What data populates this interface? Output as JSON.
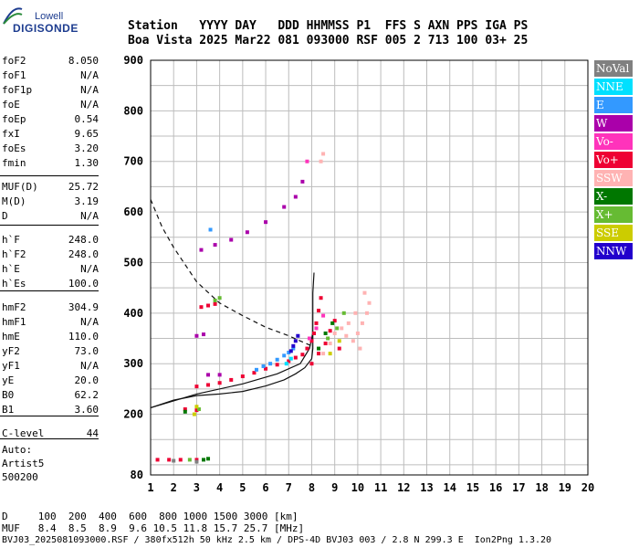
{
  "logo": {
    "top": "Lowell",
    "main": "DIGISONDE"
  },
  "header": {
    "line1": "Station   YYYY DAY   DDD HHMMSS P1  FFS S AXN PPS IGA PS",
    "line2": "Boa Vista 2025 Mar22 081 093000 RSF 005 2 713 100 03+ 25"
  },
  "params": [
    {
      "k": "foF2",
      "v": "8.050"
    },
    {
      "k": "foF1",
      "v": "N/A"
    },
    {
      "k": "foF1p",
      "v": "N/A"
    },
    {
      "k": "foE",
      "v": "N/A"
    },
    {
      "k": "foEp",
      "v": "0.54"
    },
    {
      "k": "fxI",
      "v": "9.65"
    },
    {
      "k": "foEs",
      "v": "3.20"
    },
    {
      "k": "fmin",
      "v": "1.30"
    },
    {
      "k": "MUF(D)",
      "v": "25.72"
    },
    {
      "k": "M(D)",
      "v": "3.19"
    },
    {
      "k": "D",
      "v": "N/A"
    },
    {
      "k": "h`F",
      "v": "248.0"
    },
    {
      "k": "h`F2",
      "v": "248.0"
    },
    {
      "k": "h`E",
      "v": "N/A"
    },
    {
      "k": "h`Es",
      "v": "100.0"
    },
    {
      "k": "hmF2",
      "v": "304.9"
    },
    {
      "k": "hmF1",
      "v": "N/A"
    },
    {
      "k": "hmE",
      "v": "110.0"
    },
    {
      "k": "yF2",
      "v": "73.0"
    },
    {
      "k": "yF1",
      "v": "N/A"
    },
    {
      "k": "yE",
      "v": "20.0"
    },
    {
      "k": "B0",
      "v": "62.2"
    },
    {
      "k": "B1",
      "v": "3.60"
    },
    {
      "k": "C-level",
      "v": "44"
    }
  ],
  "auto": {
    "line1": "Auto:",
    "line2": "Artist5",
    "line3": "500200"
  },
  "footer": {
    "d_row": "D     100  200  400  600  800 1000 1500 3000 [km]",
    "muf_row": "MUF   8.4  8.5  8.9  9.6 10.5 11.8 15.7 25.7 [MHz]",
    "file_row": "BVJ03_2025081093000.RSF / 380fx512h 50 kHz 2.5 km / DPS-4D BVJ03 003 / 2.8 N 299.3 E  Ion2Png 1.3.20"
  },
  "legend": [
    {
      "label": "NoVal",
      "color": "#808080"
    },
    {
      "label": "NNE",
      "color": "#00e0ff"
    },
    {
      "label": "E",
      "color": "#3399ff"
    },
    {
      "label": "W",
      "color": "#aa00aa"
    },
    {
      "label": "Vo-",
      "color": "#ff33bb"
    },
    {
      "label": "Vo+",
      "color": "#ee0033"
    },
    {
      "label": "SSW",
      "color": "#ffb3b3"
    },
    {
      "label": "X-",
      "color": "#007700"
    },
    {
      "label": "X+",
      "color": "#66bb33"
    },
    {
      "label": "SSE",
      "color": "#cccc00"
    },
    {
      "label": "NNW",
      "color": "#2200cc"
    }
  ],
  "chart_data": {
    "type": "scatter",
    "title": "",
    "xlabel": "",
    "ylabel": "",
    "xlim": [
      1,
      20
    ],
    "ylim": [
      80,
      900
    ],
    "x_ticks": [
      1,
      2,
      3,
      4,
      5,
      6,
      7,
      8,
      9,
      10,
      11,
      12,
      13,
      14,
      15,
      16,
      17,
      18,
      19,
      20
    ],
    "y_ticks": [
      80,
      200,
      300,
      400,
      500,
      600,
      700,
      800,
      900
    ],
    "grid": true,
    "series": [
      {
        "name": "Vo+",
        "color": "#ee0033",
        "points": [
          [
            3.0,
            255
          ],
          [
            3.5,
            258
          ],
          [
            4.0,
            262
          ],
          [
            4.5,
            268
          ],
          [
            5.0,
            275
          ],
          [
            5.5,
            282
          ],
          [
            6.0,
            290
          ],
          [
            6.5,
            298
          ],
          [
            7.0,
            305
          ],
          [
            7.3,
            312
          ],
          [
            7.6,
            318
          ],
          [
            7.8,
            330
          ],
          [
            8.0,
            345
          ],
          [
            8.1,
            360
          ],
          [
            8.2,
            380
          ],
          [
            8.3,
            405
          ],
          [
            8.4,
            430
          ],
          [
            8.0,
            300
          ],
          [
            8.3,
            320
          ],
          [
            8.6,
            340
          ],
          [
            8.8,
            365
          ],
          [
            9.0,
            385
          ],
          [
            9.2,
            330
          ],
          [
            3.2,
            412
          ],
          [
            3.5,
            415
          ],
          [
            3.8,
            418
          ],
          [
            1.3,
            110
          ],
          [
            1.8,
            110
          ],
          [
            2.3,
            110
          ],
          [
            3.0,
            110
          ],
          [
            2.5,
            210
          ],
          [
            3.0,
            208
          ]
        ]
      },
      {
        "name": "SSW",
        "color": "#ffb3b3",
        "points": [
          [
            8.5,
            320
          ],
          [
            8.8,
            340
          ],
          [
            9.0,
            360
          ],
          [
            9.3,
            370
          ],
          [
            9.5,
            355
          ],
          [
            9.8,
            345
          ],
          [
            10.0,
            360
          ],
          [
            10.2,
            380
          ],
          [
            10.4,
            400
          ],
          [
            10.5,
            420
          ],
          [
            10.3,
            440
          ],
          [
            9.6,
            380
          ],
          [
            9.9,
            400
          ],
          [
            10.1,
            330
          ],
          [
            8.5,
            715
          ],
          [
            8.4,
            700
          ]
        ]
      },
      {
        "name": "E",
        "color": "#3399ff",
        "points": [
          [
            5.6,
            288
          ],
          [
            5.9,
            295
          ],
          [
            6.2,
            300
          ],
          [
            6.5,
            308
          ],
          [
            6.8,
            316
          ],
          [
            7.0,
            322
          ],
          [
            7.2,
            330
          ],
          [
            3.6,
            565
          ]
        ]
      },
      {
        "name": "NNW",
        "color": "#2200cc",
        "points": [
          [
            7.2,
            335
          ],
          [
            7.3,
            345
          ],
          [
            7.4,
            355
          ],
          [
            7.1,
            325
          ]
        ]
      },
      {
        "name": "W",
        "color": "#aa00aa",
        "points": [
          [
            3.2,
            525
          ],
          [
            3.8,
            535
          ],
          [
            4.5,
            545
          ],
          [
            5.2,
            560
          ],
          [
            6.0,
            580
          ],
          [
            6.8,
            610
          ],
          [
            7.3,
            630
          ],
          [
            7.6,
            660
          ],
          [
            3.5,
            278
          ],
          [
            4.0,
            278
          ],
          [
            3.3,
            358
          ],
          [
            3.0,
            355
          ]
        ]
      },
      {
        "name": "Vo-",
        "color": "#ff33bb",
        "points": [
          [
            7.9,
            350
          ],
          [
            8.2,
            370
          ],
          [
            8.5,
            395
          ],
          [
            7.8,
            700
          ]
        ]
      },
      {
        "name": "X-",
        "color": "#007700",
        "points": [
          [
            8.3,
            330
          ],
          [
            8.6,
            360
          ],
          [
            8.9,
            380
          ],
          [
            2.5,
            205
          ],
          [
            3.3,
            110
          ],
          [
            3.5,
            112
          ]
        ]
      },
      {
        "name": "X+",
        "color": "#66bb33",
        "points": [
          [
            8.7,
            350
          ],
          [
            9.1,
            370
          ],
          [
            9.4,
            400
          ],
          [
            3.8,
            425
          ],
          [
            4.0,
            430
          ],
          [
            2.7,
            110
          ],
          [
            3.1,
            210
          ]
        ]
      },
      {
        "name": "SSE",
        "color": "#cccc00",
        "points": [
          [
            8.8,
            320
          ],
          [
            9.2,
            345
          ],
          [
            2.9,
            200
          ],
          [
            3.0,
            215
          ]
        ]
      },
      {
        "name": "NNE",
        "color": "#00e0ff",
        "points": [
          [
            6.9,
            300
          ],
          [
            7.1,
            310
          ]
        ]
      },
      {
        "name": "NoVal",
        "color": "#808080",
        "points": [
          [
            3.0,
            106
          ],
          [
            2.0,
            108
          ]
        ]
      }
    ],
    "curves": [
      {
        "style": "solid",
        "points": [
          [
            1.0,
            213
          ],
          [
            2.0,
            228
          ],
          [
            3.0,
            237
          ],
          [
            4.0,
            240
          ],
          [
            5.0,
            245
          ],
          [
            6.0,
            256
          ],
          [
            6.8,
            268
          ],
          [
            7.3,
            280
          ],
          [
            7.7,
            292
          ],
          [
            8.0,
            310
          ],
          [
            8.05,
            330
          ],
          [
            8.05,
            440
          ],
          [
            8.1,
            480
          ]
        ]
      },
      {
        "style": "solid",
        "points": [
          [
            1.0,
            213
          ],
          [
            3.0,
            240
          ],
          [
            5.0,
            260
          ],
          [
            6.5,
            280
          ],
          [
            7.5,
            300
          ],
          [
            7.9,
            330
          ],
          [
            8.05,
            360
          ]
        ]
      },
      {
        "style": "dashed",
        "points": [
          [
            1.0,
            625
          ],
          [
            1.5,
            570
          ],
          [
            2.0,
            530
          ],
          [
            3.0,
            462
          ],
          [
            4.0,
            420
          ],
          [
            5.0,
            395
          ],
          [
            6.0,
            372
          ],
          [
            7.0,
            355
          ],
          [
            7.5,
            345
          ],
          [
            8.0,
            335
          ]
        ]
      }
    ]
  }
}
